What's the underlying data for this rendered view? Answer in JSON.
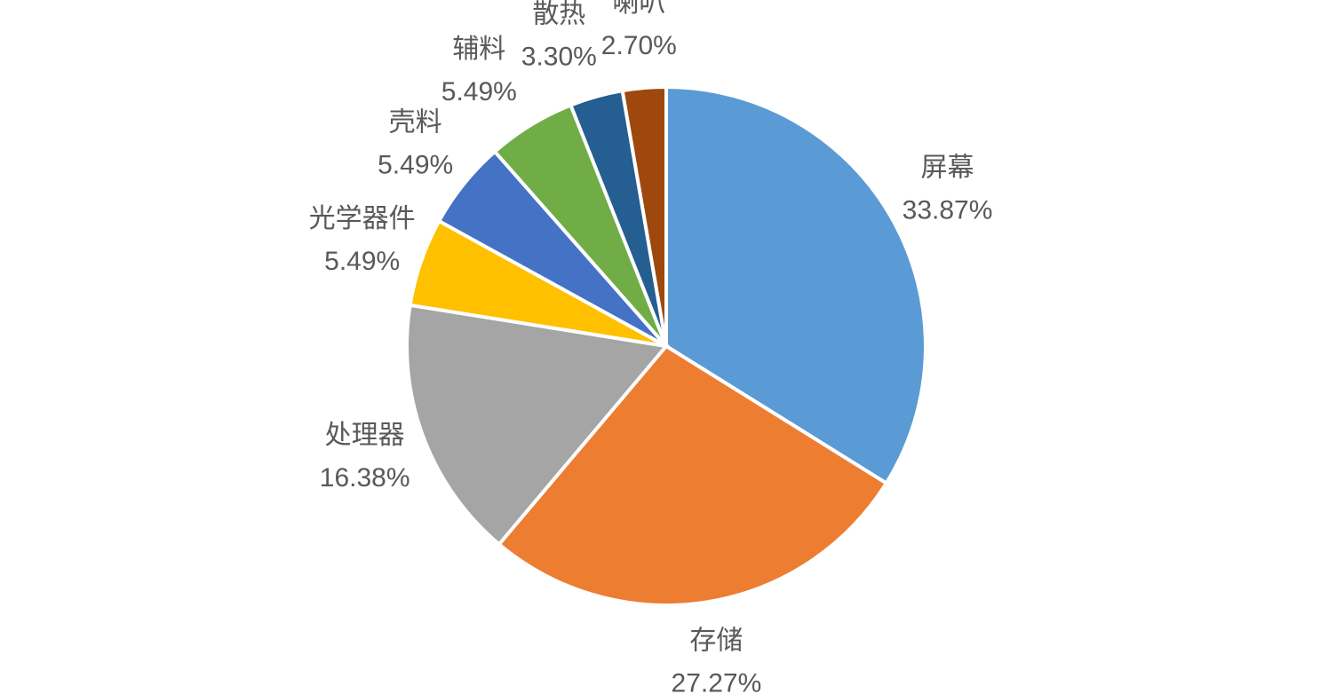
{
  "chart_data": {
    "type": "pie",
    "categories": [
      "屏幕",
      "存储",
      "处理器",
      "光学器件",
      "壳料",
      "辅料",
      "散热",
      "喇叭"
    ],
    "values": [
      33.87,
      27.27,
      16.38,
      5.49,
      5.49,
      5.49,
      3.3,
      2.7
    ],
    "value_labels": [
      "33.87%",
      "27.27%",
      "16.38%",
      "5.49%",
      "5.49%",
      "5.49%",
      "3.30%",
      "2.70%"
    ],
    "colors": [
      "#5b9bd5",
      "#ed7d31",
      "#a5a5a5",
      "#ffc000",
      "#4472c4",
      "#70ad47",
      "#255e91",
      "#9e480e"
    ]
  }
}
